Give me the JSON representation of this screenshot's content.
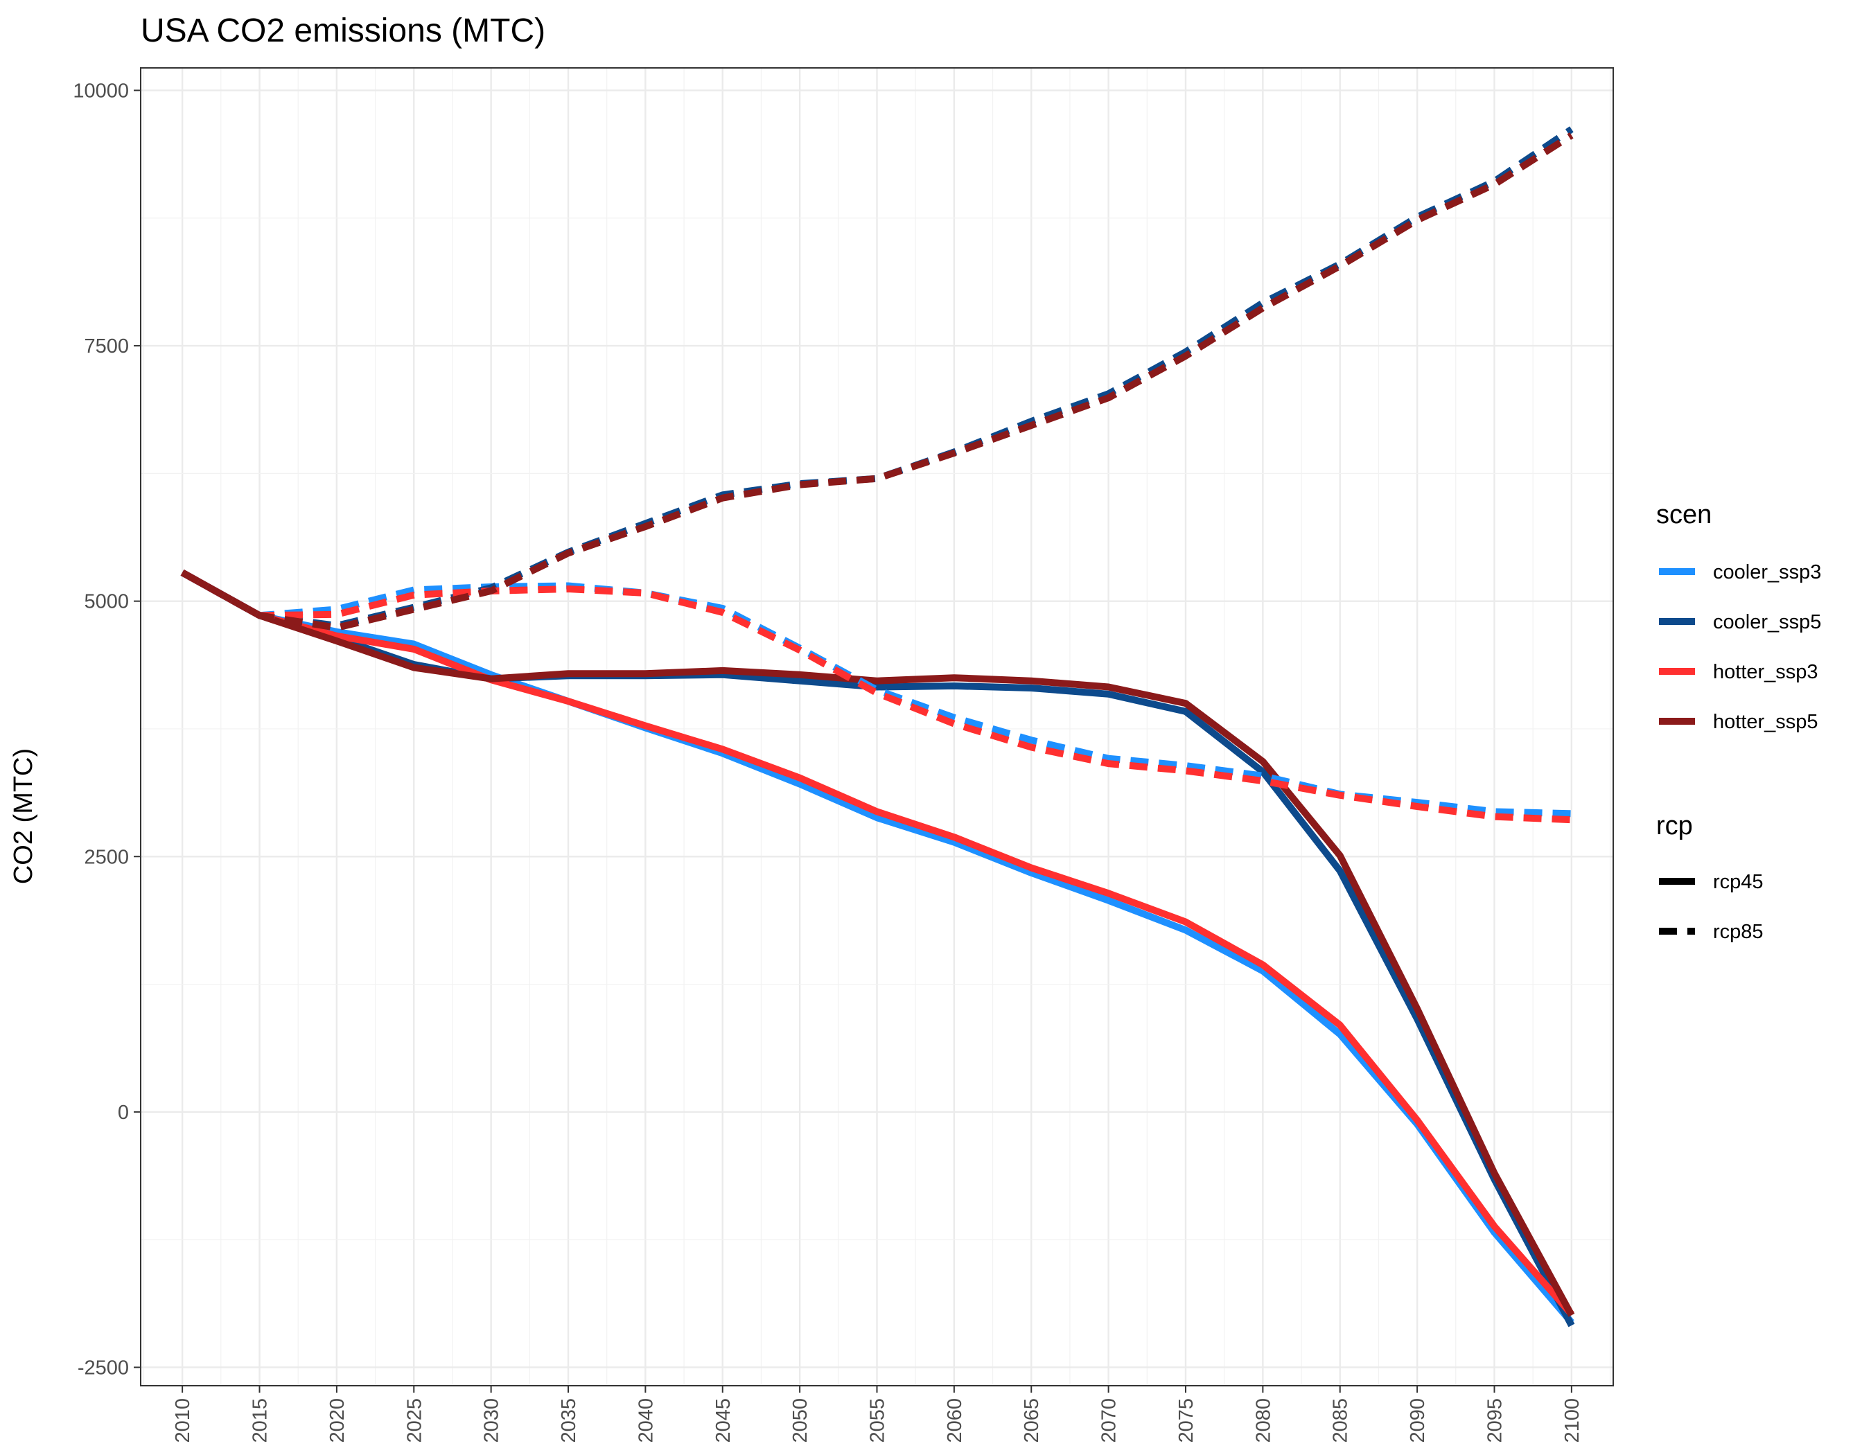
{
  "chart_data": {
    "type": "line",
    "title": "USA CO2 emissions (MTC)",
    "xlabel": "",
    "ylabel": "CO2 (MTC)",
    "xlim": [
      2007.3,
      2102.7
    ],
    "ylim": [
      -2680,
      10220
    ],
    "x_ticks": [
      2010,
      2015,
      2020,
      2025,
      2030,
      2035,
      2040,
      2045,
      2050,
      2055,
      2060,
      2065,
      2070,
      2075,
      2080,
      2085,
      2090,
      2095,
      2100
    ],
    "y_ticks": [
      -2500,
      0,
      2500,
      5000,
      7500,
      10000
    ],
    "x_tick_labels": [
      "2010",
      "2015",
      "2020",
      "2025",
      "2030",
      "2035",
      "2040",
      "2045",
      "2050",
      "2055",
      "2060",
      "2065",
      "2070",
      "2075",
      "2080",
      "2085",
      "2090",
      "2095",
      "2100"
    ],
    "y_tick_labels": [
      "-2500",
      "0",
      "2500",
      "5000",
      "7500",
      "10000"
    ],
    "grid": true,
    "legend_position": "right",
    "x": [
      2010,
      2015,
      2020,
      2025,
      2030,
      2035,
      2040,
      2045,
      2050,
      2055,
      2060,
      2065,
      2070,
      2075,
      2080,
      2085,
      2090,
      2095,
      2100
    ],
    "series": [
      {
        "scen": "cooler_ssp3",
        "rcp": "rcp45",
        "color": "#1E90FF",
        "values": [
          5280,
          4860,
          4700,
          4580,
          4280,
          4020,
          3760,
          3510,
          3210,
          2880,
          2640,
          2340,
          2070,
          1780,
          1380,
          760,
          -120,
          -1180,
          -2060
        ]
      },
      {
        "scen": "cooler_ssp3",
        "rcp": "rcp85",
        "color": "#1E90FF",
        "values": [
          5280,
          4860,
          4920,
          5110,
          5140,
          5150,
          5080,
          4930,
          4540,
          4130,
          3860,
          3640,
          3460,
          3390,
          3290,
          3110,
          3030,
          2940,
          2920
        ]
      },
      {
        "scen": "cooler_ssp5",
        "rcp": "rcp45",
        "color": "#0D4A8C",
        "values": [
          5280,
          4860,
          4640,
          4380,
          4240,
          4270,
          4270,
          4280,
          4220,
          4160,
          4170,
          4150,
          4090,
          3920,
          3330,
          2360,
          910,
          -660,
          -2090
        ]
      },
      {
        "scen": "cooler_ssp5",
        "rcp": "rcp85",
        "color": "#0D4A8C",
        "values": [
          5280,
          4860,
          4760,
          4940,
          5130,
          5480,
          5760,
          6040,
          6150,
          6200,
          6460,
          6760,
          7030,
          7440,
          7920,
          8300,
          8760,
          9110,
          9620
        ]
      },
      {
        "scen": "hotter_ssp3",
        "rcp": "rcp45",
        "color": "#FF3030",
        "values": [
          5280,
          4860,
          4660,
          4530,
          4230,
          4020,
          3780,
          3550,
          3270,
          2940,
          2690,
          2390,
          2140,
          1860,
          1440,
          850,
          -80,
          -1120,
          -1980
        ]
      },
      {
        "scen": "hotter_ssp3",
        "rcp": "rcp85",
        "color": "#FF3030",
        "values": [
          5280,
          4860,
          4870,
          5060,
          5100,
          5120,
          5080,
          4890,
          4520,
          4100,
          3800,
          3570,
          3410,
          3340,
          3240,
          3100,
          2990,
          2890,
          2860
        ]
      },
      {
        "scen": "hotter_ssp5",
        "rcp": "rcp45",
        "color": "#8B1A1A",
        "values": [
          5280,
          4860,
          4610,
          4350,
          4240,
          4290,
          4290,
          4320,
          4280,
          4220,
          4250,
          4220,
          4160,
          4000,
          3430,
          2510,
          1010,
          -600,
          -1990
        ]
      },
      {
        "scen": "hotter_ssp5",
        "rcp": "rcp85",
        "color": "#8B1A1A",
        "values": [
          5280,
          4860,
          4740,
          4920,
          5100,
          5470,
          5730,
          6010,
          6140,
          6200,
          6450,
          6720,
          6990,
          7400,
          7870,
          8280,
          8730,
          9080,
          9560
        ]
      }
    ],
    "legends": {
      "scen": {
        "title": "scen",
        "entries": [
          {
            "label": "cooler_ssp3",
            "color": "#1E90FF"
          },
          {
            "label": "cooler_ssp5",
            "color": "#0D4A8C"
          },
          {
            "label": "hotter_ssp3",
            "color": "#FF3030"
          },
          {
            "label": "hotter_ssp5",
            "color": "#8B1A1A"
          }
        ]
      },
      "rcp": {
        "title": "rcp",
        "entries": [
          {
            "label": "rcp45",
            "dash": "solid",
            "color": "#000000"
          },
          {
            "label": "rcp85",
            "dash": "dashed",
            "color": "#000000"
          }
        ]
      }
    }
  }
}
